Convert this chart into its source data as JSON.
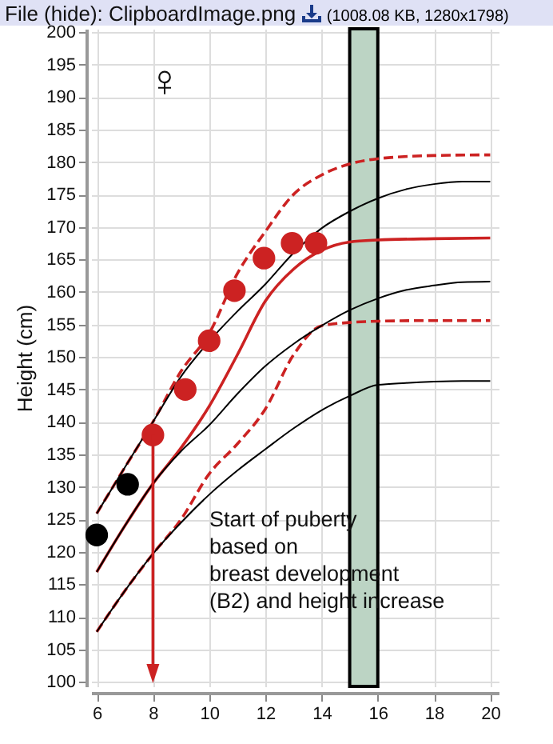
{
  "chart_data": {
    "type": "line",
    "ylabel": "Height (cm)",
    "xlim": [
      5.8,
      20.3
    ],
    "ylim": [
      99.3,
      200.5
    ],
    "xticks": [
      6,
      8,
      10,
      12,
      14,
      16,
      18,
      20
    ],
    "yticks": [
      100,
      105,
      110,
      115,
      120,
      125,
      130,
      135,
      140,
      145,
      150,
      155,
      160,
      165,
      170,
      175,
      180,
      185,
      190,
      195,
      200
    ],
    "grid": true,
    "annotations": [
      "File (hide): ClipboardImage.png",
      "(1008.08 KB, 1280x1798)",
      "♀",
      "Start of puberty\nbased on\nbreast development\n(B2) and height increase"
    ],
    "bands": [
      {
        "axis": "x",
        "from": 15,
        "to": 16,
        "color": "#bcd4c4"
      }
    ],
    "series": [
      {
        "type": "line",
        "color": "#cc2222",
        "line_style": "solid",
        "x": [
          6,
          7,
          8,
          9,
          10,
          11,
          12,
          13,
          14,
          15,
          16,
          18,
          20
        ],
        "values": [
          116.9,
          124,
          130.5,
          136,
          142.4,
          150.3,
          158.6,
          163.5,
          166.4,
          167.7,
          168,
          168.2,
          168.3
        ]
      },
      {
        "type": "line",
        "color": "#cc2222",
        "line_style": "dashed",
        "x": [
          6,
          7,
          8,
          9,
          10,
          11,
          12,
          13,
          14,
          15,
          16,
          18,
          20
        ],
        "values": [
          125.9,
          133,
          140,
          147.8,
          153.6,
          162.8,
          169.3,
          175,
          178,
          179.7,
          180.5,
          181,
          181.1
        ]
      },
      {
        "type": "line",
        "color": "#cc2222",
        "line_style": "dashed",
        "x": [
          6,
          7,
          8,
          9,
          10,
          11,
          12,
          13,
          14,
          15,
          16,
          18,
          20
        ],
        "values": [
          107.7,
          114,
          119.7,
          125,
          132,
          136.6,
          142,
          150.3,
          154.8,
          155.3,
          155.5,
          155.6,
          155.6
        ]
      },
      {
        "type": "line",
        "color": "#000000",
        "line_style": "solid",
        "x": [
          6,
          7,
          8,
          9,
          10,
          11,
          12,
          13,
          14,
          15,
          16,
          17,
          18,
          19,
          20
        ],
        "values": [
          125.9,
          133,
          140,
          147,
          152.4,
          157,
          161.2,
          166,
          169.8,
          172.4,
          174.4,
          175.8,
          176.6,
          177,
          177
        ]
      },
      {
        "type": "line",
        "color": "#000000",
        "line_style": "solid",
        "x": [
          6,
          7,
          8,
          9,
          10,
          11,
          12,
          13,
          14,
          15,
          16,
          17,
          18,
          19,
          20
        ],
        "values": [
          116.9,
          124,
          130.5,
          135.5,
          139.5,
          144.3,
          148.6,
          152,
          154.8,
          157.2,
          159,
          160.3,
          161,
          161.5,
          161.6
        ]
      },
      {
        "type": "line",
        "color": "#000000",
        "line_style": "solid",
        "x": [
          6,
          7,
          8,
          9,
          10,
          11,
          12,
          13,
          14,
          15,
          16,
          17,
          18,
          19,
          20
        ],
        "values": [
          107.7,
          114,
          119.7,
          124.5,
          128.8,
          132.5,
          135.8,
          139,
          141.8,
          144,
          145.7,
          146,
          146.2,
          146.3,
          146.3
        ]
      },
      {
        "type": "scatter",
        "color": "#cc2222",
        "marker": "circle",
        "x": [
          8,
          9.15,
          10,
          10.9,
          11.95,
          12.95,
          13.8
        ],
        "values": [
          138,
          145,
          152.5,
          160.2,
          165.2,
          167.5,
          167.5
        ]
      },
      {
        "type": "scatter",
        "color": "#000000",
        "marker": "circle",
        "x": [
          6,
          7.1
        ],
        "values": [
          122.6,
          130.4
        ]
      }
    ]
  }
}
